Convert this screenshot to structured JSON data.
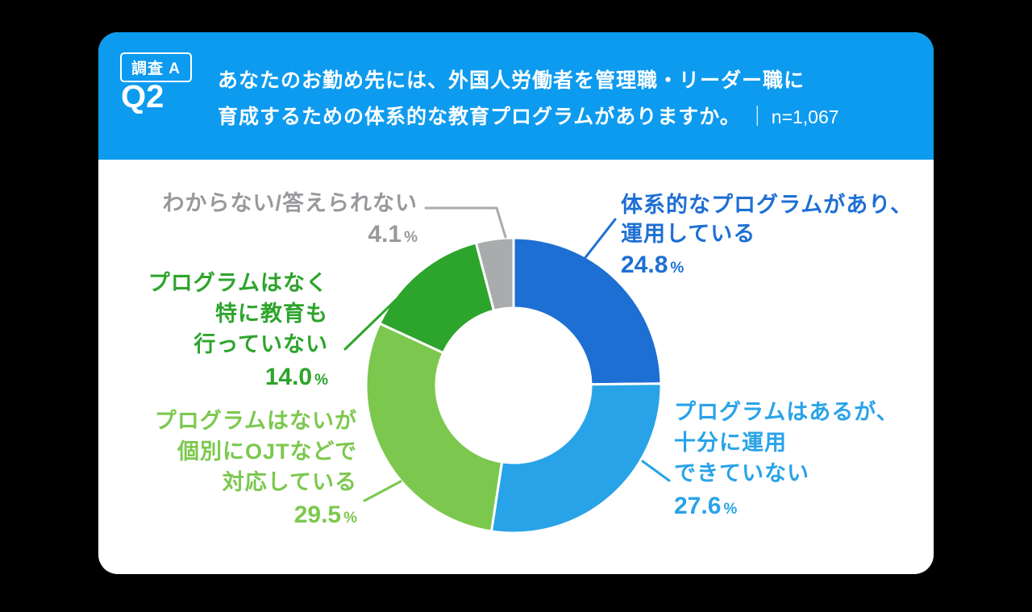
{
  "colors": {
    "page_bg": "#000000",
    "card_bg": "#ffffff",
    "header_bg": "#0d9bef",
    "header_text": "#ffffff"
  },
  "header": {
    "badge": "調査 A",
    "question_no": "Q2",
    "question_line1": "あなたのお勤め先には、外国人労働者を管理職・リーダー職に",
    "question_line2": "育成するための体系的な教育プログラムがありますか。",
    "separator": "｜",
    "sample": "n=1,067"
  },
  "chart_data": {
    "type": "pie",
    "subtype": "donut",
    "title": "あなたのお勤め先には、外国人労働者を管理職・リーダー職に育成するための体系的な教育プログラムがありますか。",
    "sample_size": "n=1,067",
    "unit": "%",
    "start_angle": 0,
    "direction": "clockwise",
    "segments": [
      {
        "id": "program-operated",
        "label_lines": [
          "体系的なプログラムがあり、",
          "運用している"
        ],
        "value": 24.8,
        "value_display": "24.8",
        "color": "#1e6fd4",
        "text_color": "#1e6fd4"
      },
      {
        "id": "program-not-fully-operated",
        "label_lines": [
          "プログラムはあるが、",
          "十分に運用",
          "できていない"
        ],
        "value": 27.6,
        "value_display": "27.6",
        "color": "#29a3e8",
        "text_color": "#29a3e8"
      },
      {
        "id": "no-program-ojt",
        "label_lines": [
          "プログラムはないが",
          "個別にOJTなどで",
          "対応している"
        ],
        "value": 29.5,
        "value_display": "29.5",
        "color": "#7cc84e",
        "text_color": "#7cc84e"
      },
      {
        "id": "no-program-no-training",
        "label_lines": [
          "プログラムはなく",
          "特に教育も",
          "行っていない"
        ],
        "value": 14.0,
        "value_display": "14.0",
        "color": "#2da42c",
        "text_color": "#2da42c"
      },
      {
        "id": "dont-know",
        "label_lines": [
          "わからない/答えられない"
        ],
        "value": 4.1,
        "value_display": "4.1",
        "color": "#a9abad",
        "text_color": "#97999c"
      }
    ]
  }
}
